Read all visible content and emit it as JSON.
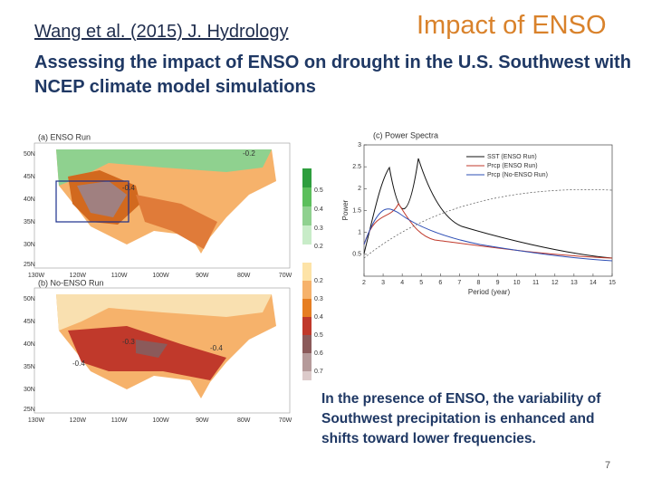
{
  "header": {
    "citation": "Wang et al. (2015) J. Hydrology",
    "title": "Impact of ENSO",
    "subtitle": "Assessing the impact of ENSO on drought in the U.S. Southwest with NCEP climate model simulations"
  },
  "maps": [
    {
      "label": "(a) ENSO Run",
      "contour_labels": [
        "-0.2",
        "-0.4"
      ],
      "colorbar": [
        "0.5",
        "0.4",
        "0.3",
        "0.2"
      ]
    },
    {
      "label": "(b) No-ENSO Run",
      "contour_labels": [
        "-0.3",
        "-0.4",
        "-0.4"
      ],
      "colorbar": [
        "0.2",
        "0.3",
        "0.4",
        "0.5",
        "0.6",
        "0.7"
      ]
    }
  ],
  "map_axes": {
    "lat": [
      "50N",
      "45N",
      "40N",
      "35N",
      "30N",
      "25N"
    ],
    "lon": [
      "130W",
      "120W",
      "110W",
      "100W",
      "90W",
      "80W",
      "70W"
    ]
  },
  "spectrum": {
    "title": "(c) Power Spectra",
    "xlabel": "Period (year)",
    "ylabel": "Power",
    "xlim": [
      2,
      15
    ],
    "ylim": [
      0,
      3
    ],
    "xticks": [
      2,
      3,
      4,
      5,
      6,
      7,
      8,
      9,
      10,
      11,
      12,
      13,
      14,
      15
    ],
    "yticks": [
      0.5,
      1,
      1.5,
      2,
      2.5,
      3
    ],
    "legend": [
      "SST (ENSO Run)",
      "Prcp (ENSO Run)",
      "Prcp (No-ENSO Run)"
    ]
  },
  "note": "In the presence of ENSO, the variability of Southwest precipitation is enhanced and shifts toward lower frequencies.",
  "page_number": "7"
}
